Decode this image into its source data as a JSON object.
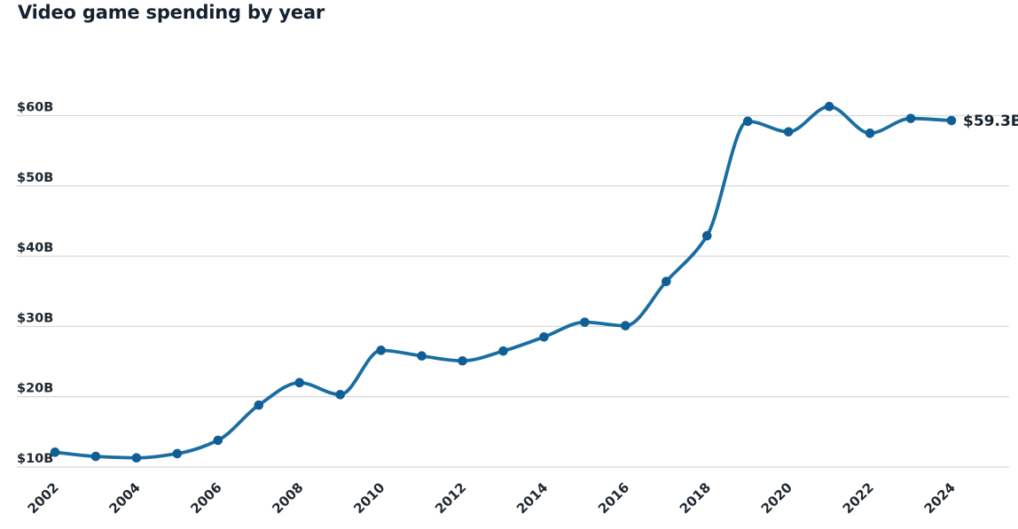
{
  "chart_data": {
    "type": "line",
    "title": "Video game spending by year",
    "xlabel": "",
    "ylabel": "",
    "x": [
      2002,
      2003,
      2004,
      2005,
      2006,
      2007,
      2008,
      2009,
      2010,
      2011,
      2012,
      2013,
      2014,
      2015,
      2016,
      2017,
      2018,
      2019,
      2020,
      2021,
      2022,
      2023,
      2024
    ],
    "values": [
      12.1,
      11.5,
      11.3,
      11.9,
      13.8,
      18.8,
      22.0,
      20.3,
      26.6,
      25.8,
      25.1,
      26.5,
      28.5,
      30.6,
      30.1,
      36.4,
      42.9,
      59.2,
      57.7,
      61.3,
      57.5,
      59.6,
      59.3
    ],
    "units": "billions USD",
    "xlim": [
      2002,
      2024
    ],
    "ylim": [
      10,
      65
    ],
    "grid": "horizontal",
    "legend": "none",
    "curve": "smooth-monotone",
    "end_label": "$59.3B",
    "yticks": [
      {
        "value": 10,
        "label": "$10B"
      },
      {
        "value": 20,
        "label": "$20B"
      },
      {
        "value": 30,
        "label": "$30B"
      },
      {
        "value": 40,
        "label": "$40B"
      },
      {
        "value": 50,
        "label": "$50B"
      },
      {
        "value": 60,
        "label": "$60B"
      }
    ],
    "xticks": [
      {
        "value": 2002,
        "label": "2002"
      },
      {
        "value": 2004,
        "label": "2004"
      },
      {
        "value": 2006,
        "label": "2006"
      },
      {
        "value": 2008,
        "label": "2008"
      },
      {
        "value": 2010,
        "label": "2010"
      },
      {
        "value": 2012,
        "label": "2012"
      },
      {
        "value": 2014,
        "label": "2014"
      },
      {
        "value": 2016,
        "label": "2016"
      },
      {
        "value": 2018,
        "label": "2018"
      },
      {
        "value": 2020,
        "label": "2020"
      },
      {
        "value": 2022,
        "label": "2022"
      },
      {
        "value": 2024,
        "label": "2024"
      }
    ],
    "colors": {
      "line": "#1a6da1",
      "point": "#105e96",
      "grid": "#d9d9d9",
      "title_text": "#15212e",
      "tick_text": "#1e2831",
      "end_label_text": "#15212e"
    }
  }
}
